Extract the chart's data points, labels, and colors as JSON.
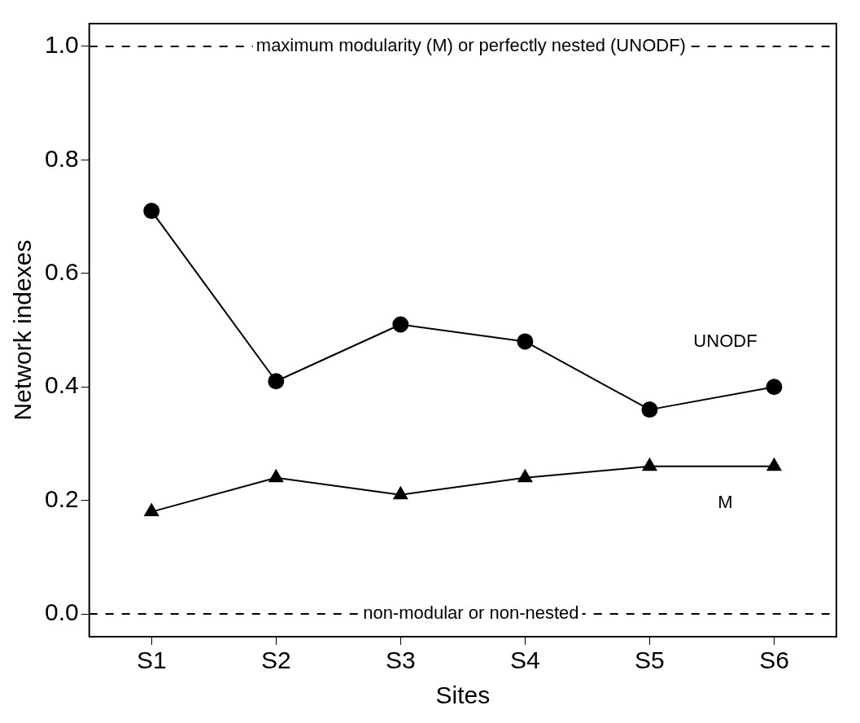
{
  "chart_data": {
    "type": "line",
    "xlabel": "Sites",
    "ylabel": "Network indexes",
    "categories": [
      "S1",
      "S2",
      "S3",
      "S4",
      "S5",
      "S6"
    ],
    "series": [
      {
        "name": "UNODF",
        "color": "#000000",
        "marker": "circle",
        "values": [
          0.71,
          0.41,
          0.51,
          0.48,
          0.36,
          0.4
        ]
      },
      {
        "name": "M",
        "color": "#000000",
        "marker": "triangle",
        "values": [
          0.18,
          0.24,
          0.21,
          0.24,
          0.26,
          0.26
        ]
      }
    ],
    "ylim": [
      -0.04,
      1.04
    ],
    "yticks": [
      {
        "value": 0,
        "label": "0.0"
      },
      0.2,
      0.4,
      0.6,
      0.8,
      {
        "value": 1,
        "label": "1.0"
      }
    ],
    "ref_lines": [
      {
        "axis": "y",
        "value": 1,
        "label": "maximum modularity (M) or perfectly nested (UNODF)",
        "line_style": "dashed",
        "color": "#000000"
      },
      {
        "axis": "y",
        "value": 0,
        "label": "non-modular or non-nested",
        "line_style": "dashed",
        "color": "#000000"
      }
    ],
    "grid": false,
    "legend": false,
    "line_style": "solid"
  }
}
